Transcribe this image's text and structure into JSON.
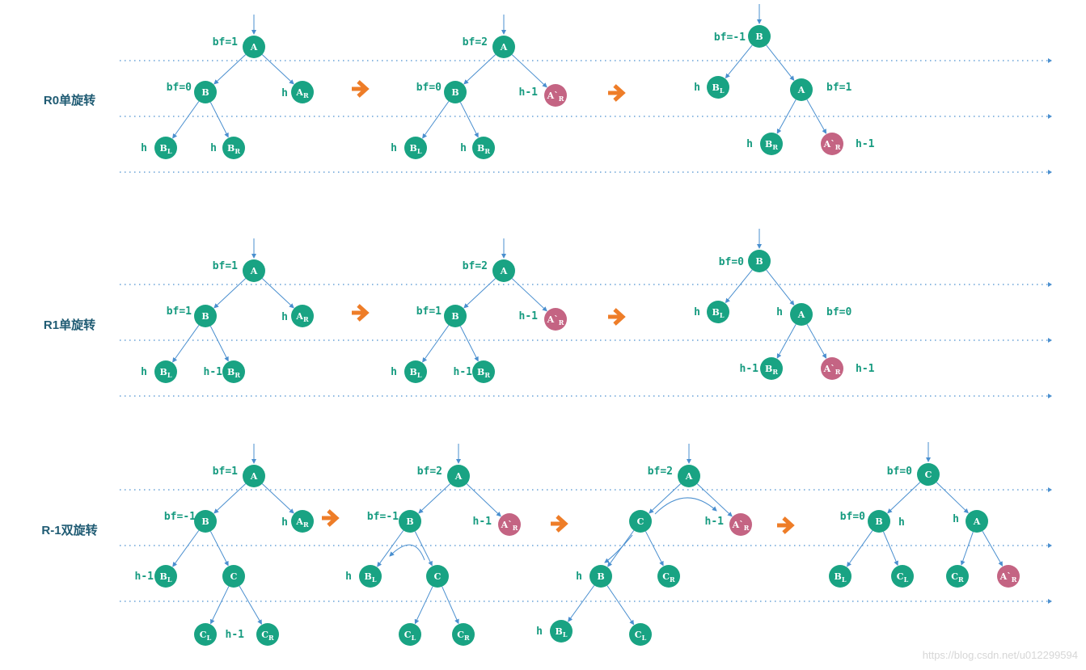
{
  "colors": {
    "node": "#19a383",
    "node_modified": "#c46483",
    "edge": "#4a8fcf",
    "arrow": "#ee7d28",
    "label": "#179b80",
    "row_title": "#1f5b73"
  },
  "rows": [
    {
      "title": "R0单旋转"
    },
    {
      "title": "R1单旋转"
    },
    {
      "title": "R-1双旋转"
    }
  ],
  "watermark": "https://blog.csdn.net/u012299594",
  "labels": {
    "bf_1": "bf=1",
    "bf_2": "bf=2",
    "bf_0": "bf=0",
    "bf_neg1": "bf=-1",
    "h": "h",
    "h_minus_1": "h-1"
  },
  "node_names": {
    "A": "A",
    "B": "B",
    "C": "C",
    "BL": "B",
    "BL_sub": "L",
    "BR": "B",
    "BR_sub": "R",
    "AR": "A",
    "AR_sub": "R",
    "AR2": "A`",
    "AR2_sub": "R",
    "CL": "C",
    "CL_sub": "L",
    "CR": "C",
    "CR_sub": "R"
  }
}
